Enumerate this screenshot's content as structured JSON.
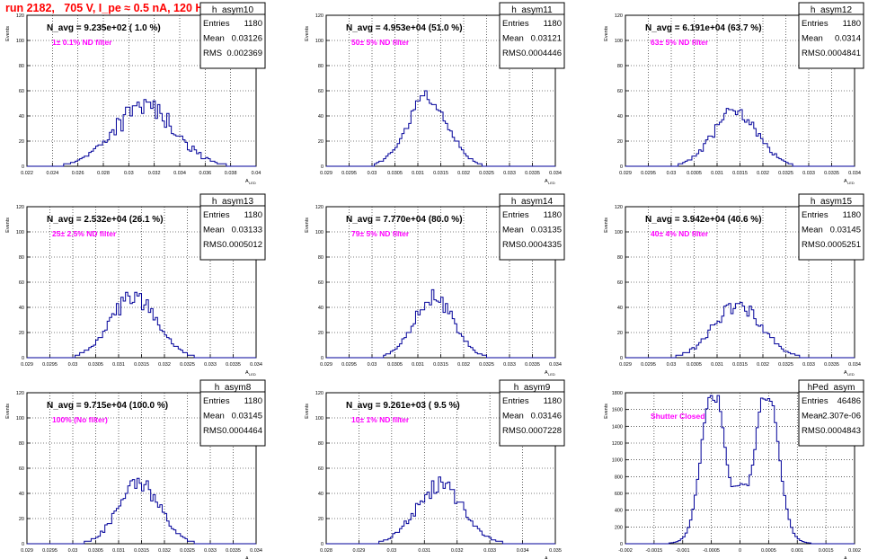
{
  "title": "run 2182,   705 V, I_pe ≈ 0.5 nA, 120 Hz",
  "colors": {
    "hist": "#000099",
    "note": "#ff00ff",
    "title": "#ff0000",
    "grid": "#000000",
    "text": "#000000"
  },
  "stats_labels": {
    "entries": "Entries",
    "mean": "Mean",
    "rms": "RMS"
  },
  "y_axis_label": "Events",
  "x_axis_label": "A",
  "x_axis_label_sub": "LED",
  "chart_data": [
    {
      "type": "histogram",
      "name": "h_asym10",
      "header": "N_avg = 9.235e+02 ( 1.0 %)",
      "note": "1± 0.1% ND filter",
      "stats": {
        "entries": "1180",
        "mean": "0.03126",
        "rms": "0.002369"
      },
      "xlim": [
        0.022,
        0.04
      ],
      "ylim": [
        0,
        120
      ],
      "xticks": [
        "0.022",
        "0.024",
        "0.026",
        "0.028",
        "0.03",
        "0.032",
        "0.034",
        "0.036",
        "0.038",
        "0.04"
      ],
      "yticks": [
        "0",
        "20",
        "40",
        "60",
        "80",
        "100",
        "120"
      ],
      "grid": true,
      "mean": 0.03126,
      "sigma": 0.0024,
      "peak": 47,
      "bins": 100,
      "noise": 0.22,
      "seed": 10
    },
    {
      "type": "histogram",
      "name": "h_asym11",
      "header": "N_avg = 4.953e+04 (51.0 %)",
      "note": "50± 5% ND filter",
      "stats": {
        "entries": "1180",
        "mean": "0.03121",
        "rms": "0.0004446"
      },
      "xlim": [
        0.029,
        0.034
      ],
      "ylim": [
        0,
        120
      ],
      "xticks": [
        "0.029",
        "0.0295",
        "0.03",
        "0.0305",
        "0.031",
        "0.0315",
        "0.032",
        "0.0325",
        "0.033",
        "0.0335",
        "0.034"
      ],
      "yticks": [
        "0",
        "20",
        "40",
        "60",
        "80",
        "100",
        "120"
      ],
      "grid": true,
      "mean": 0.03121,
      "sigma": 0.00044,
      "peak": 55,
      "bins": 100,
      "noise": 0.12,
      "seed": 11
    },
    {
      "type": "histogram",
      "name": "h_asym12",
      "header": "N_avg = 6.191e+04 (63.7 %)",
      "note": "63± 5% ND filter",
      "stats": {
        "entries": "1180",
        "mean": "0.0314",
        "rms": "0.0004841"
      },
      "xlim": [
        0.029,
        0.034
      ],
      "ylim": [
        0,
        120
      ],
      "xticks": [
        "0.029",
        "0.0295",
        "0.03",
        "0.0305",
        "0.031",
        "0.0315",
        "0.032",
        "0.0325",
        "0.033",
        "0.0335",
        "0.034"
      ],
      "yticks": [
        "0",
        "20",
        "40",
        "60",
        "80",
        "100",
        "120"
      ],
      "grid": true,
      "mean": 0.0314,
      "sigma": 0.00048,
      "peak": 44,
      "bins": 100,
      "noise": 0.15,
      "seed": 12
    },
    {
      "type": "histogram",
      "name": "h_asym13",
      "header": "N_avg = 2.532e+04 (26.1 %)",
      "note": "25± 2.5% ND filter",
      "stats": {
        "entries": "1180",
        "mean": "0.03133",
        "rms": "0.0005012"
      },
      "xlim": [
        0.029,
        0.034
      ],
      "ylim": [
        0,
        120
      ],
      "xticks": [
        "0.029",
        "0.0295",
        "0.03",
        "0.0305",
        "0.031",
        "0.0315",
        "0.032",
        "0.0325",
        "0.033",
        "0.0335",
        "0.034"
      ],
      "yticks": [
        "0",
        "20",
        "40",
        "60",
        "80",
        "100",
        "120"
      ],
      "grid": true,
      "mean": 0.03133,
      "sigma": 0.0005,
      "peak": 48,
      "bins": 100,
      "noise": 0.16,
      "seed": 13
    },
    {
      "type": "histogram",
      "name": "h_asym14",
      "header": "N_avg = 7.770e+04 (80.0 %)",
      "note": "79± 5% ND filter",
      "stats": {
        "entries": "1180",
        "mean": "0.03135",
        "rms": "0.0004335"
      },
      "xlim": [
        0.029,
        0.034
      ],
      "ylim": [
        0,
        120
      ],
      "xticks": [
        "0.029",
        "0.0295",
        "0.03",
        "0.0305",
        "0.031",
        "0.0315",
        "0.032",
        "0.0325",
        "0.033",
        "0.0335",
        "0.034"
      ],
      "yticks": [
        "0",
        "20",
        "40",
        "60",
        "80",
        "100",
        "120"
      ],
      "grid": true,
      "mean": 0.03135,
      "sigma": 0.00043,
      "peak": 48,
      "bins": 100,
      "noise": 0.14,
      "seed": 14
    },
    {
      "type": "histogram",
      "name": "h_asym15",
      "header": "N_avg = 3.942e+04 (40.6 %)",
      "note": "40± 4% ND filter",
      "stats": {
        "entries": "1180",
        "mean": "0.03145",
        "rms": "0.0005251"
      },
      "xlim": [
        0.029,
        0.034
      ],
      "ylim": [
        0,
        120
      ],
      "xticks": [
        "0.029",
        "0.0295",
        "0.03",
        "0.0305",
        "0.031",
        "0.0315",
        "0.032",
        "0.0325",
        "0.033",
        "0.0335",
        "0.034"
      ],
      "yticks": [
        "0",
        "20",
        "40",
        "60",
        "80",
        "100",
        "120"
      ],
      "grid": true,
      "mean": 0.03145,
      "sigma": 0.00052,
      "peak": 42,
      "bins": 100,
      "noise": 0.15,
      "seed": 15
    },
    {
      "type": "histogram",
      "name": "h_asym8",
      "header": "N_avg = 9.715e+04 (100.0 %)",
      "note": "100% (No filter)",
      "stats": {
        "entries": "1180",
        "mean": "0.03145",
        "rms": "0.0004464"
      },
      "xlim": [
        0.029,
        0.034
      ],
      "ylim": [
        0,
        120
      ],
      "xticks": [
        "0.029",
        "0.0295",
        "0.03",
        "0.0305",
        "0.031",
        "0.0315",
        "0.032",
        "0.0325",
        "0.033",
        "0.0335",
        "0.034"
      ],
      "yticks": [
        "0",
        "20",
        "40",
        "60",
        "80",
        "100",
        "120"
      ],
      "grid": true,
      "mean": 0.03145,
      "sigma": 0.00045,
      "peak": 47,
      "bins": 100,
      "noise": 0.16,
      "seed": 8
    },
    {
      "type": "histogram",
      "name": "h_asym9",
      "header": "N_avg = 9.261e+03 ( 9.5 %)",
      "note": "10± 1% ND filter",
      "stats": {
        "entries": "1180",
        "mean": "0.03146",
        "rms": "0.0007228"
      },
      "xlim": [
        0.028,
        0.035
      ],
      "ylim": [
        0,
        120
      ],
      "xticks": [
        "0.028",
        "0.029",
        "0.03",
        "0.031",
        "0.032",
        "0.033",
        "0.034",
        "0.035"
      ],
      "yticks": [
        "0",
        "20",
        "40",
        "60",
        "80",
        "100",
        "120"
      ],
      "grid": true,
      "mean": 0.03146,
      "sigma": 0.00072,
      "peak": 46,
      "bins": 100,
      "noise": 0.17,
      "seed": 9
    },
    {
      "type": "histogram",
      "name": "hPed_asym",
      "header": "",
      "note": "Shutter Closed",
      "stats": {
        "entries": "46486",
        "mean": "-2.307e-06",
        "rms": "0.0004843"
      },
      "xlim": [
        -0.002,
        0.002
      ],
      "ylim": [
        0,
        1800
      ],
      "xticks": [
        "-0.002",
        "-0.0015",
        "-0.001",
        "-0.0005",
        "0",
        "0.0005",
        "0.001",
        "0.0015",
        "0.002"
      ],
      "yticks": [
        "0",
        "200",
        "400",
        "600",
        "800",
        "1000",
        "1200",
        "1400",
        "1600",
        "1800"
      ],
      "grid": true,
      "bimodal": true,
      "peaks": [
        -0.00048,
        0.00048
      ],
      "sigma": 0.00019,
      "peak": 1720,
      "valley": 720,
      "bins": 100,
      "noise": 0.03,
      "seed": 99
    }
  ]
}
